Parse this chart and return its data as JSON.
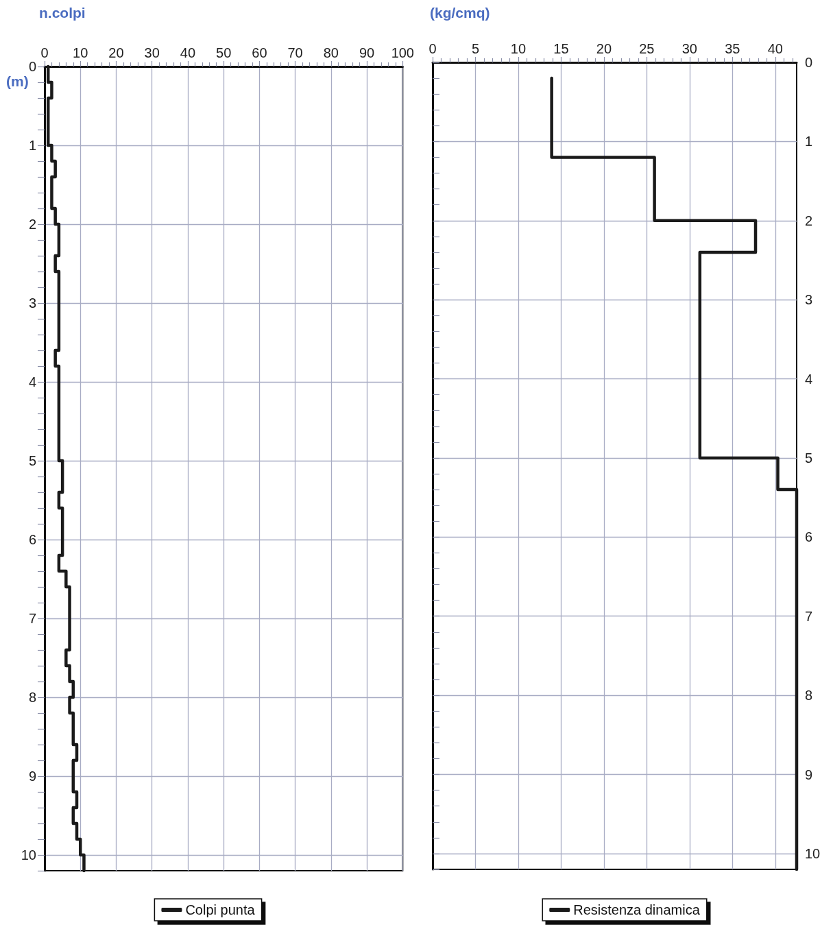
{
  "chart_data": [
    {
      "type": "step",
      "orientation": "horizontal",
      "xlabel": "n.colpi",
      "ylabel": "(m)",
      "legend": "bottom",
      "grid": true,
      "line_style": "solid",
      "marker": "none",
      "xlim": [
        0,
        100
      ],
      "xticks": [
        0,
        {
          "value": 2,
          "label": null
        },
        {
          "value": 4,
          "label": null
        },
        {
          "value": 6,
          "label": null
        },
        {
          "value": 8,
          "label": null
        },
        10,
        {
          "value": 12,
          "label": null
        },
        {
          "value": 14,
          "label": null
        },
        {
          "value": 16,
          "label": null
        },
        {
          "value": 18,
          "label": null
        },
        20,
        {
          "value": 22,
          "label": null
        },
        {
          "value": 24,
          "label": null
        },
        {
          "value": 26,
          "label": null
        },
        {
          "value": 28,
          "label": null
        },
        30,
        {
          "value": 32,
          "label": null
        },
        {
          "value": 34,
          "label": null
        },
        {
          "value": 36,
          "label": null
        },
        {
          "value": 38,
          "label": null
        },
        40,
        {
          "value": 42,
          "label": null
        },
        {
          "value": 44,
          "label": null
        },
        {
          "value": 46,
          "label": null
        },
        {
          "value": 48,
          "label": null
        },
        50,
        {
          "value": 52,
          "label": null
        },
        {
          "value": 54,
          "label": null
        },
        {
          "value": 56,
          "label": null
        },
        {
          "value": 58,
          "label": null
        },
        60,
        {
          "value": 62,
          "label": null
        },
        {
          "value": 64,
          "label": null
        },
        {
          "value": 66,
          "label": null
        },
        {
          "value": 68,
          "label": null
        },
        70,
        {
          "value": 72,
          "label": null
        },
        {
          "value": 74,
          "label": null
        },
        {
          "value": 76,
          "label": null
        },
        {
          "value": 78,
          "label": null
        },
        80,
        {
          "value": 82,
          "label": null
        },
        {
          "value": 84,
          "label": null
        },
        {
          "value": 86,
          "label": null
        },
        {
          "value": 88,
          "label": null
        },
        90,
        {
          "value": 92,
          "label": null
        },
        {
          "value": 94,
          "label": null
        },
        {
          "value": 96,
          "label": null
        },
        {
          "value": 98,
          "label": null
        },
        100
      ],
      "ylim": [
        10.2,
        0
      ],
      "yticks": [
        0,
        {
          "value": 0.2,
          "label": null
        },
        {
          "value": 0.4,
          "label": null
        },
        {
          "value": 0.6,
          "label": null
        },
        {
          "value": 0.8,
          "label": null
        },
        1,
        {
          "value": 1.2,
          "label": null
        },
        {
          "value": 1.4,
          "label": null
        },
        {
          "value": 1.6,
          "label": null
        },
        {
          "value": 1.8,
          "label": null
        },
        2,
        {
          "value": 2.2,
          "label": null
        },
        {
          "value": 2.4,
          "label": null
        },
        {
          "value": 2.6,
          "label": null
        },
        {
          "value": 2.8,
          "label": null
        },
        3,
        {
          "value": 3.2,
          "label": null
        },
        {
          "value": 3.4,
          "label": null
        },
        {
          "value": 3.6,
          "label": null
        },
        {
          "value": 3.8,
          "label": null
        },
        4,
        {
          "value": 4.2,
          "label": null
        },
        {
          "value": 4.4,
          "label": null
        },
        {
          "value": 4.6,
          "label": null
        },
        {
          "value": 4.8,
          "label": null
        },
        5,
        {
          "value": 5.2,
          "label": null
        },
        {
          "value": 5.4,
          "label": null
        },
        {
          "value": 5.6,
          "label": null
        },
        {
          "value": 5.8,
          "label": null
        },
        6,
        {
          "value": 6.2,
          "label": null
        },
        {
          "value": 6.4,
          "label": null
        },
        {
          "value": 6.6,
          "label": null
        },
        {
          "value": 6.8,
          "label": null
        },
        7,
        {
          "value": 7.2,
          "label": null
        },
        {
          "value": 7.4,
          "label": null
        },
        {
          "value": 7.6,
          "label": null
        },
        {
          "value": 7.8,
          "label": null
        },
        8,
        {
          "value": 8.2,
          "label": null
        },
        {
          "value": 8.4,
          "label": null
        },
        {
          "value": 8.6,
          "label": null
        },
        {
          "value": 8.8,
          "label": null
        },
        9,
        {
          "value": 9.2,
          "label": null
        },
        {
          "value": 9.4,
          "label": null
        },
        {
          "value": 9.6,
          "label": null
        },
        {
          "value": 9.8,
          "label": null
        },
        10,
        {
          "value": 10.2,
          "label": null
        }
      ],
      "series": [
        {
          "name": "Colpi punta",
          "color": "#1a1a1a",
          "x": [
            0,
            0.2,
            0.4,
            1.0,
            1.2,
            1.4,
            1.8,
            2.0,
            2.4,
            2.6,
            3.6,
            3.8,
            5.0,
            5.4,
            5.6,
            6.2,
            6.4,
            6.6,
            7.4,
            7.6,
            7.8,
            8.0,
            8.2,
            8.6,
            8.8,
            9.2,
            9.4,
            9.6,
            9.8,
            10.0,
            10.2
          ],
          "values": [
            1,
            2,
            1,
            2,
            3,
            2,
            3,
            4,
            3,
            4,
            3,
            4,
            5,
            4,
            5,
            4,
            6,
            7,
            6,
            7,
            8,
            7,
            8,
            9,
            8,
            9,
            8,
            9,
            10,
            11,
            11
          ]
        }
      ]
    },
    {
      "type": "step",
      "orientation": "horizontal",
      "xlabel": "(kg/cmq)",
      "legend": "bottom",
      "grid": true,
      "line_style": "solid",
      "marker": "none",
      "xlim": [
        0,
        42.5
      ],
      "xticks": [
        0,
        {
          "value": 1,
          "label": null
        },
        {
          "value": 2,
          "label": null
        },
        {
          "value": 3,
          "label": null
        },
        {
          "value": 4,
          "label": null
        },
        5,
        {
          "value": 6,
          "label": null
        },
        {
          "value": 7,
          "label": null
        },
        {
          "value": 8,
          "label": null
        },
        {
          "value": 9,
          "label": null
        },
        10,
        {
          "value": 11,
          "label": null
        },
        {
          "value": 12,
          "label": null
        },
        {
          "value": 13,
          "label": null
        },
        {
          "value": 14,
          "label": null
        },
        15,
        {
          "value": 16,
          "label": null
        },
        {
          "value": 17,
          "label": null
        },
        {
          "value": 18,
          "label": null
        },
        {
          "value": 19,
          "label": null
        },
        20,
        {
          "value": 21,
          "label": null
        },
        {
          "value": 22,
          "label": null
        },
        {
          "value": 23,
          "label": null
        },
        {
          "value": 24,
          "label": null
        },
        25,
        {
          "value": 26,
          "label": null
        },
        {
          "value": 27,
          "label": null
        },
        {
          "value": 28,
          "label": null
        },
        {
          "value": 29,
          "label": null
        },
        30,
        {
          "value": 31,
          "label": null
        },
        {
          "value": 32,
          "label": null
        },
        {
          "value": 33,
          "label": null
        },
        {
          "value": 34,
          "label": null
        },
        35,
        {
          "value": 36,
          "label": null
        },
        {
          "value": 37,
          "label": null
        },
        {
          "value": 38,
          "label": null
        },
        {
          "value": 39,
          "label": null
        },
        40,
        {
          "value": 41,
          "label": null
        },
        {
          "value": 42,
          "label": null
        }
      ],
      "ylim": [
        10.2,
        0
      ],
      "yticks": [
        0,
        {
          "value": 0.2,
          "label": null
        },
        {
          "value": 0.4,
          "label": null
        },
        {
          "value": 0.6,
          "label": null
        },
        {
          "value": 0.8,
          "label": null
        },
        1,
        {
          "value": 1.2,
          "label": null
        },
        {
          "value": 1.4,
          "label": null
        },
        {
          "value": 1.6,
          "label": null
        },
        {
          "value": 1.8,
          "label": null
        },
        2,
        {
          "value": 2.2,
          "label": null
        },
        {
          "value": 2.4,
          "label": null
        },
        {
          "value": 2.6,
          "label": null
        },
        {
          "value": 2.8,
          "label": null
        },
        3,
        {
          "value": 3.2,
          "label": null
        },
        {
          "value": 3.4,
          "label": null
        },
        {
          "value": 3.6,
          "label": null
        },
        {
          "value": 3.8,
          "label": null
        },
        4,
        {
          "value": 4.2,
          "label": null
        },
        {
          "value": 4.4,
          "label": null
        },
        {
          "value": 4.6,
          "label": null
        },
        {
          "value": 4.8,
          "label": null
        },
        5,
        {
          "value": 5.2,
          "label": null
        },
        {
          "value": 5.4,
          "label": null
        },
        {
          "value": 5.6,
          "label": null
        },
        {
          "value": 5.8,
          "label": null
        },
        6,
        {
          "value": 6.2,
          "label": null
        },
        {
          "value": 6.4,
          "label": null
        },
        {
          "value": 6.6,
          "label": null
        },
        {
          "value": 6.8,
          "label": null
        },
        7,
        {
          "value": 7.2,
          "label": null
        },
        {
          "value": 7.4,
          "label": null
        },
        {
          "value": 7.6,
          "label": null
        },
        {
          "value": 7.8,
          "label": null
        },
        8,
        {
          "value": 8.2,
          "label": null
        },
        {
          "value": 8.4,
          "label": null
        },
        {
          "value": 8.6,
          "label": null
        },
        {
          "value": 8.8,
          "label": null
        },
        9,
        {
          "value": 9.2,
          "label": null
        },
        {
          "value": 9.4,
          "label": null
        },
        {
          "value": 9.6,
          "label": null
        },
        {
          "value": 9.8,
          "label": null
        },
        10,
        {
          "value": 10.2,
          "label": null
        }
      ],
      "series": [
        {
          "name": "Resistenza dinamica",
          "color": "#1a1a1a",
          "x": [
            0.2,
            1.2,
            2.0,
            2.4,
            5.0,
            5.4,
            10.2
          ],
          "values": [
            13.9,
            25.9,
            37.7,
            31.2,
            40.3,
            42.5,
            42.5
          ]
        }
      ]
    }
  ]
}
